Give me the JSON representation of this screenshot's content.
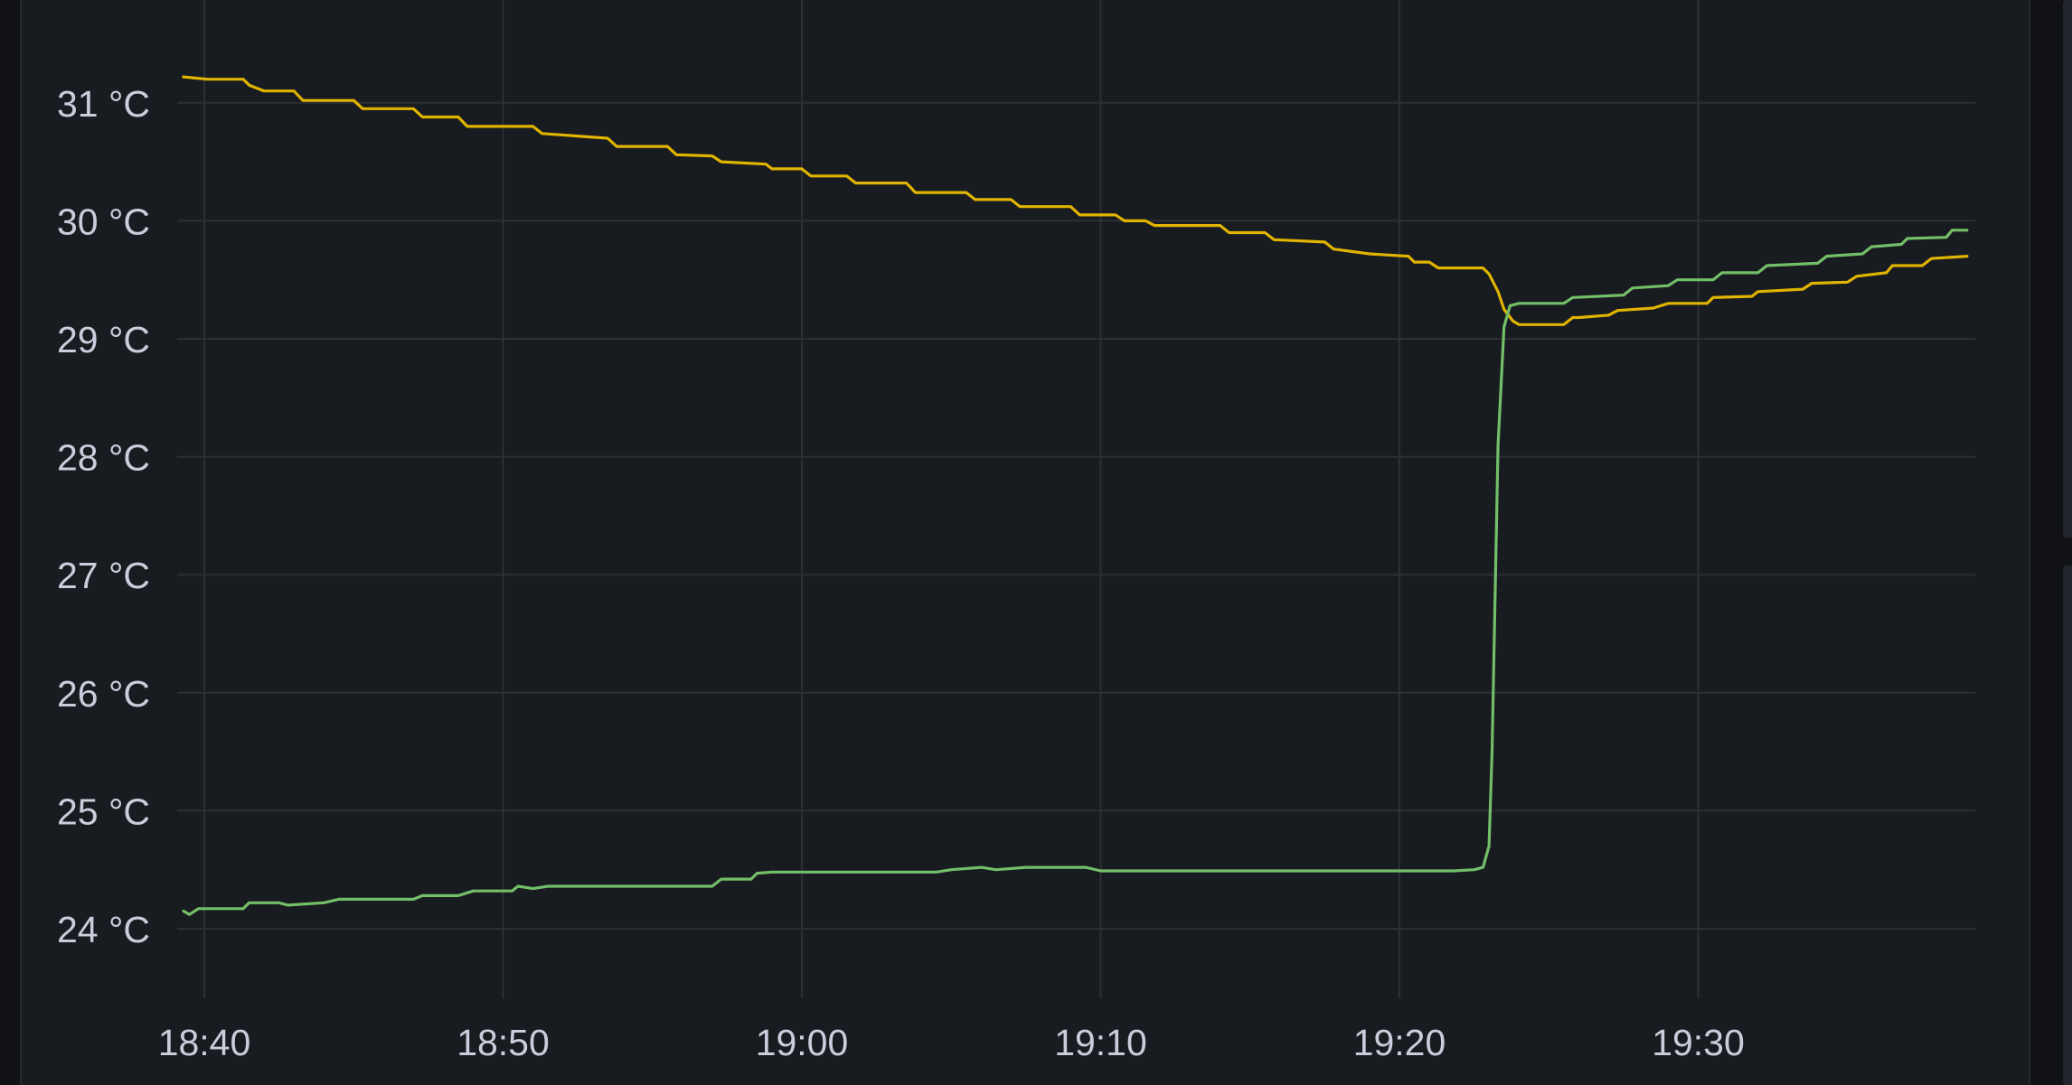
{
  "colors": {
    "background": "#181b1f",
    "grid": "#2c2f35",
    "text": "#ccccdc"
  },
  "chart_data": {
    "type": "line",
    "title": "",
    "xlabel": "",
    "ylabel": "",
    "unit": "°C",
    "xlim": [
      "18:39",
      "19:39"
    ],
    "ylim": [
      23.4,
      31.6
    ],
    "grid": true,
    "legend": "none",
    "x_ticks": [
      "18:40",
      "18:50",
      "19:00",
      "19:10",
      "19:20",
      "19:30"
    ],
    "y_ticks": [
      "24 °C",
      "25 °C",
      "26 °C",
      "27 °C",
      "28 °C",
      "29 °C",
      "30 °C",
      "31 °C"
    ],
    "series": [
      {
        "color": "#e0b400",
        "points": [
          [
            "18:39.3",
            31.22
          ],
          [
            "18:40.1",
            31.2
          ],
          [
            "18:41.3",
            31.2
          ],
          [
            "18:41.5",
            31.15
          ],
          [
            "18:42.0",
            31.1
          ],
          [
            "18:43.0",
            31.1
          ],
          [
            "18:43.3",
            31.02
          ],
          [
            "18:45.0",
            31.02
          ],
          [
            "18:45.3",
            30.95
          ],
          [
            "18:47.0",
            30.95
          ],
          [
            "18:47.3",
            30.88
          ],
          [
            "18:48.5",
            30.88
          ],
          [
            "18:48.8",
            30.8
          ],
          [
            "18:51.0",
            30.8
          ],
          [
            "18:51.3",
            30.74
          ],
          [
            "18:53.5",
            30.7
          ],
          [
            "18:53.8",
            30.63
          ],
          [
            "18:55.5",
            30.63
          ],
          [
            "18:55.8",
            30.56
          ],
          [
            "18:57.0",
            30.55
          ],
          [
            "18:57.3",
            30.5
          ],
          [
            "18:58.8",
            30.48
          ],
          [
            "18:59.0",
            30.44
          ],
          [
            "19:00.0",
            30.44
          ],
          [
            "19:00.3",
            30.38
          ],
          [
            "19:01.5",
            30.38
          ],
          [
            "19:01.8",
            30.32
          ],
          [
            "19:03.5",
            30.32
          ],
          [
            "19:03.8",
            30.24
          ],
          [
            "19:05.5",
            30.24
          ],
          [
            "19:05.8",
            30.18
          ],
          [
            "19:07.0",
            30.18
          ],
          [
            "19:07.3",
            30.12
          ],
          [
            "19:09.0",
            30.12
          ],
          [
            "19:09.3",
            30.05
          ],
          [
            "19:10.5",
            30.05
          ],
          [
            "19:10.8",
            30.0
          ],
          [
            "19:11.5",
            30.0
          ],
          [
            "19:11.8",
            29.96
          ],
          [
            "19:14.0",
            29.96
          ],
          [
            "19:14.3",
            29.9
          ],
          [
            "19:15.5",
            29.9
          ],
          [
            "19:15.8",
            29.84
          ],
          [
            "19:17.5",
            29.82
          ],
          [
            "19:17.8",
            29.76
          ],
          [
            "19:19.0",
            29.72
          ],
          [
            "19:20.3",
            29.7
          ],
          [
            "19:20.5",
            29.65
          ],
          [
            "19:21.0",
            29.65
          ],
          [
            "19:21.3",
            29.6
          ],
          [
            "19:22.8",
            29.6
          ],
          [
            "19:23.0",
            29.55
          ],
          [
            "19:23.3",
            29.4
          ],
          [
            "19:23.5",
            29.25
          ],
          [
            "19:23.8",
            29.15
          ],
          [
            "19:24.0",
            29.12
          ],
          [
            "19:25.5",
            29.12
          ],
          [
            "19:25.8",
            29.18
          ],
          [
            "19:26.0",
            29.18
          ],
          [
            "19:27.0",
            29.2
          ],
          [
            "19:27.3",
            29.24
          ],
          [
            "19:28.5",
            29.26
          ],
          [
            "19:29.0",
            29.3
          ],
          [
            "19:30.3",
            29.3
          ],
          [
            "19:30.5",
            29.35
          ],
          [
            "19:31.8",
            29.36
          ],
          [
            "19:32.0",
            29.4
          ],
          [
            "19:33.5",
            29.42
          ],
          [
            "19:33.8",
            29.47
          ],
          [
            "19:35.0",
            29.48
          ],
          [
            "19:35.3",
            29.53
          ],
          [
            "19:36.3",
            29.56
          ],
          [
            "19:36.5",
            29.62
          ],
          [
            "19:37.5",
            29.62
          ],
          [
            "19:37.8",
            29.68
          ],
          [
            "19:39.0",
            29.7
          ]
        ]
      },
      {
        "color": "#73bf69",
        "points": [
          [
            "18:39.3",
            24.15
          ],
          [
            "18:39.5",
            24.12
          ],
          [
            "18:39.8",
            24.17
          ],
          [
            "18:41.3",
            24.17
          ],
          [
            "18:41.5",
            24.22
          ],
          [
            "18:42.5",
            24.22
          ],
          [
            "18:42.8",
            24.2
          ],
          [
            "18:44.0",
            24.22
          ],
          [
            "18:44.5",
            24.25
          ],
          [
            "18:47.0",
            24.25
          ],
          [
            "18:47.3",
            24.28
          ],
          [
            "18:48.5",
            24.28
          ],
          [
            "18:49.0",
            24.32
          ],
          [
            "18:50.3",
            24.32
          ],
          [
            "18:50.5",
            24.36
          ],
          [
            "18:51.0",
            24.34
          ],
          [
            "18:51.5",
            24.36
          ],
          [
            "18:57.0",
            24.36
          ],
          [
            "18:57.3",
            24.42
          ],
          [
            "18:58.3",
            24.42
          ],
          [
            "18:58.5",
            24.47
          ],
          [
            "18:59.0",
            24.48
          ],
          [
            "19:04.5",
            24.48
          ],
          [
            "19:05.0",
            24.5
          ],
          [
            "19:06.0",
            24.52
          ],
          [
            "19:06.5",
            24.5
          ],
          [
            "19:07.5",
            24.52
          ],
          [
            "19:09.5",
            24.52
          ],
          [
            "19:10.0",
            24.49
          ],
          [
            "19:21.8",
            24.49
          ],
          [
            "19:22.5",
            24.5
          ],
          [
            "19:22.8",
            24.52
          ],
          [
            "19:23.0",
            24.7
          ],
          [
            "19:23.1",
            25.5
          ],
          [
            "19:23.2",
            26.8
          ],
          [
            "19:23.3",
            28.1
          ],
          [
            "19:23.5",
            29.1
          ],
          [
            "19:23.7",
            29.28
          ],
          [
            "19:24.0",
            29.3
          ],
          [
            "19:25.5",
            29.3
          ],
          [
            "19:25.8",
            29.35
          ],
          [
            "19:27.5",
            29.37
          ],
          [
            "19:27.8",
            29.43
          ],
          [
            "19:29.0",
            29.45
          ],
          [
            "19:29.3",
            29.5
          ],
          [
            "19:30.5",
            29.5
          ],
          [
            "19:30.8",
            29.56
          ],
          [
            "19:32.0",
            29.56
          ],
          [
            "19:32.3",
            29.62
          ],
          [
            "19:34.0",
            29.64
          ],
          [
            "19:34.3",
            29.7
          ],
          [
            "19:35.5",
            29.72
          ],
          [
            "19:35.8",
            29.78
          ],
          [
            "19:36.8",
            29.8
          ],
          [
            "19:37.0",
            29.85
          ],
          [
            "19:38.3",
            29.86
          ],
          [
            "19:38.5",
            29.92
          ],
          [
            "19:39.0",
            29.92
          ]
        ]
      }
    ]
  }
}
